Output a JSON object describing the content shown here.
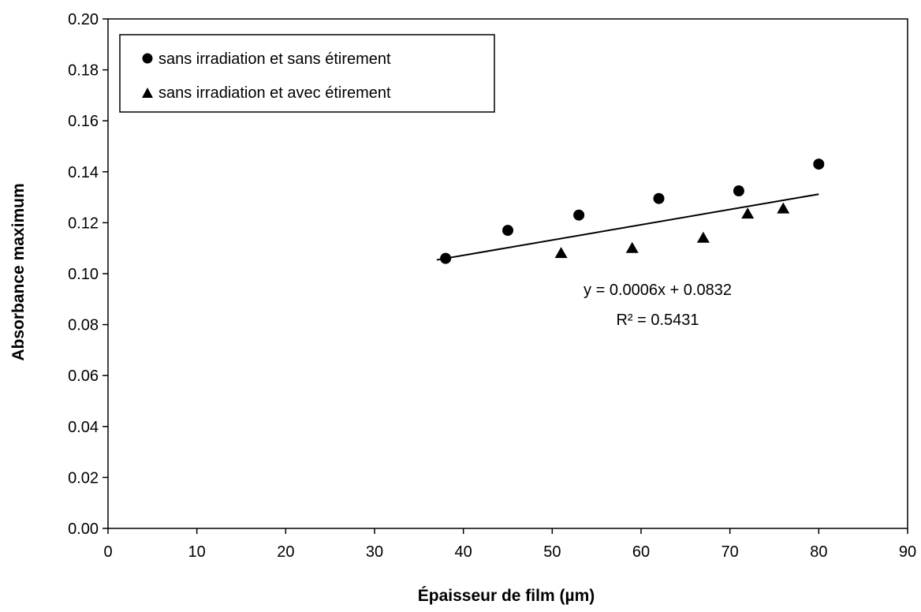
{
  "chart_data": {
    "type": "scatter",
    "title": "",
    "xlabel": "Épaisseur de film (µm)",
    "ylabel": "Absorbance maximum",
    "xlim": [
      0,
      90
    ],
    "ylim": [
      0,
      0.2
    ],
    "x_ticks": [
      "0",
      "10",
      "20",
      "30",
      "40",
      "50",
      "60",
      "70",
      "80",
      "90"
    ],
    "y_ticks": [
      "0.00",
      "0.02",
      "0.04",
      "0.06",
      "0.08",
      "0.10",
      "0.12",
      "0.14",
      "0.16",
      "0.18",
      "0.20"
    ],
    "grid": false,
    "legend_position": "top-left",
    "series": [
      {
        "name": "sans irradiation et sans étirement",
        "marker": "circle",
        "color": "#000000",
        "points": [
          {
            "x": 38,
            "y": 0.106
          },
          {
            "x": 45,
            "y": 0.117
          },
          {
            "x": 53,
            "y": 0.123
          },
          {
            "x": 62,
            "y": 0.1295
          },
          {
            "x": 71,
            "y": 0.1325
          },
          {
            "x": 80,
            "y": 0.143
          }
        ]
      },
      {
        "name": "sans irradiation et avec étirement",
        "marker": "triangle",
        "color": "#000000",
        "points": [
          {
            "x": 51,
            "y": 0.108
          },
          {
            "x": 59,
            "y": 0.11
          },
          {
            "x": 67,
            "y": 0.114
          },
          {
            "x": 72,
            "y": 0.1235
          },
          {
            "x": 76,
            "y": 0.1255
          }
        ]
      }
    ],
    "trendline": {
      "type": "linear",
      "slope": 0.0006,
      "intercept": 0.0832,
      "x_start": 37,
      "x_end": 80,
      "equation_label": "y = 0.0006x + 0.0832",
      "r2_label": "R² = 0.5431"
    }
  }
}
